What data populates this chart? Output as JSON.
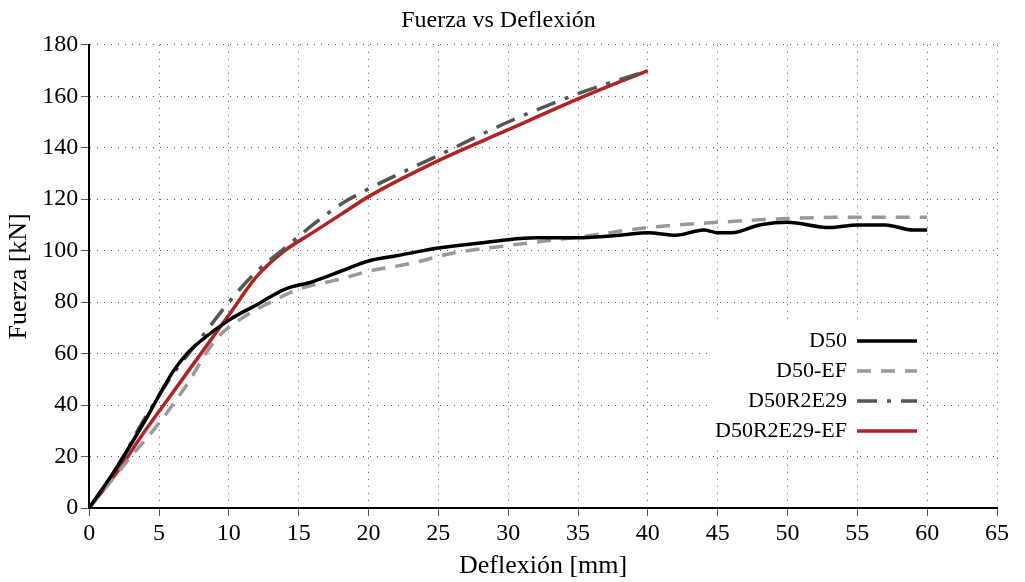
{
  "chart_data": {
    "type": "line",
    "title": "Fuerza vs Deflexión",
    "xlabel": "Deflexión [mm]",
    "ylabel": "Fuerza [kN]",
    "xlim": [
      0,
      65
    ],
    "xticks": [
      0,
      5,
      10,
      15,
      20,
      25,
      30,
      35,
      40,
      45,
      50,
      55,
      60,
      65
    ],
    "ylim": [
      0,
      180
    ],
    "yticks": [
      0,
      20,
      40,
      60,
      80,
      100,
      120,
      140,
      160,
      180
    ],
    "grid": true,
    "legend": "bottom right",
    "marker": "none",
    "series": [
      {
        "name": "D50",
        "color": "#000000",
        "line_style": "solid",
        "x": [
          0,
          2,
          4,
          6,
          7,
          8,
          10,
          12,
          14,
          16,
          18,
          20,
          22,
          25,
          28,
          32,
          35,
          38,
          40,
          42,
          44,
          45,
          46,
          48,
          50,
          53,
          55,
          57,
          59,
          60
        ],
        "values": [
          0,
          16,
          34,
          53,
          60,
          65,
          73,
          79,
          85,
          88,
          92,
          96,
          98,
          101,
          103,
          105,
          105,
          106,
          107,
          106,
          108,
          107,
          107,
          110,
          111,
          109,
          110,
          110,
          108,
          108
        ]
      },
      {
        "name": "D50-EF",
        "color": "#999999",
        "line_style": "dashed",
        "x": [
          0,
          3,
          5,
          7,
          9,
          11,
          13,
          15,
          18,
          20,
          23,
          26,
          30,
          33,
          36,
          40,
          45,
          50,
          55,
          60
        ],
        "values": [
          0,
          20,
          33,
          48,
          65,
          74,
          80,
          85,
          89,
          92,
          95,
          99,
          102,
          104,
          106,
          109,
          111,
          112.5,
          113,
          113
        ]
      },
      {
        "name": "D50R2E29",
        "color": "#555555",
        "line_style": "dashdot",
        "x": [
          0,
          2,
          4,
          6,
          8,
          10,
          12,
          14,
          16,
          18,
          20,
          25,
          30,
          35,
          40
        ],
        "values": [
          0,
          16,
          35,
          52,
          66,
          80,
          92,
          101,
          110,
          118,
          124,
          137,
          150,
          161,
          170
        ]
      },
      {
        "name": "D50R2E29-EF",
        "color": "#b22222",
        "line_style": "solid",
        "x": [
          0,
          2,
          4,
          6,
          8,
          10,
          12,
          14,
          16,
          18,
          20,
          25,
          30,
          35,
          40
        ],
        "values": [
          0,
          14,
          30,
          45,
          60,
          75,
          90,
          100,
          107,
          114,
          121,
          135,
          147,
          159,
          170
        ]
      }
    ]
  }
}
